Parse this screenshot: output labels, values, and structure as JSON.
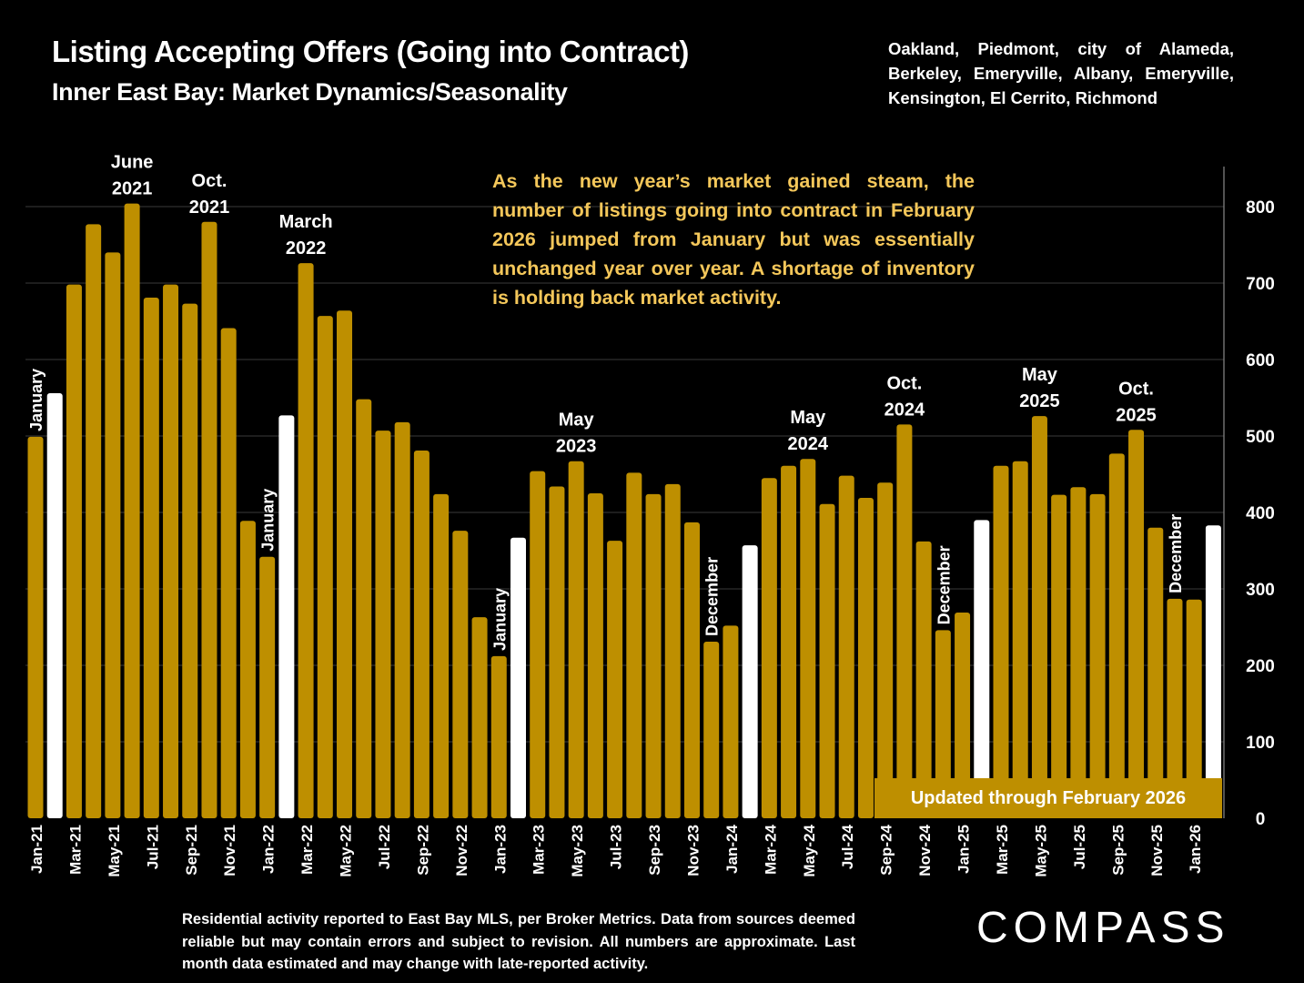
{
  "header": {
    "title": "Listing Accepting Offers (Going into Contract)",
    "subtitle": "Inner East Bay: Market Dynamics/Seasonality",
    "regions": "Oakland, Piedmont, city of Alameda, Berkeley, Emeryville, Albany, Emeryville, Kensington, El Cerrito, Richmond"
  },
  "note": "As the new year’s market gained steam, the number of listings going into contract in February 2026 jumped from January but was essentially unchanged year over year. A shortage of inventory is holding back market activity.",
  "updated_label": "Updated through February 2026",
  "footer": "Residential activity reported to East Bay MLS, per Broker Metrics. Data from sources deemed reliable but may contain errors and subject to revision. All numbers are approximate. Last month data estimated and may change with late-reported activity.",
  "logo": "COMPASS",
  "colors": {
    "bar": "#be8f00",
    "highlight_bar": "#ffffff",
    "note_text": "#f4c75a",
    "background": "#000000",
    "gridline": "#3a3a3a"
  },
  "chart_data": {
    "type": "bar",
    "title": "Listing Accepting Offers (Going into Contract)",
    "subtitle": "Inner East Bay: Market Dynamics/Seasonality",
    "xlabel": "",
    "ylabel": "",
    "ylim": [
      0,
      850
    ],
    "yticks": [
      0,
      100,
      200,
      300,
      400,
      500,
      600,
      700,
      800
    ],
    "y_axis_side": "right",
    "grid": true,
    "categories": [
      "Jan-21",
      "Feb-21",
      "Mar-21",
      "Apr-21",
      "May-21",
      "Jun-21",
      "Jul-21",
      "Aug-21",
      "Sep-21",
      "Oct-21",
      "Nov-21",
      "Dec-21",
      "Jan-22",
      "Feb-22",
      "Mar-22",
      "Apr-22",
      "May-22",
      "Jun-22",
      "Jul-22",
      "Aug-22",
      "Sep-22",
      "Oct-22",
      "Nov-22",
      "Dec-22",
      "Jan-23",
      "Feb-23",
      "Mar-23",
      "Apr-23",
      "May-23",
      "Jun-23",
      "Jul-23",
      "Aug-23",
      "Sep-23",
      "Oct-23",
      "Nov-23",
      "Dec-23",
      "Jan-24",
      "Feb-24",
      "Mar-24",
      "Apr-24",
      "May-24",
      "Jun-24",
      "Jul-24",
      "Aug-24",
      "Sep-24",
      "Oct-24",
      "Nov-24",
      "Dec-24",
      "Jan-25",
      "Feb-25",
      "Mar-25",
      "Apr-25",
      "May-25",
      "Jun-25",
      "Jul-25",
      "Aug-25",
      "Sep-25",
      "Oct-25",
      "Nov-25",
      "Dec-25",
      "Jan-26",
      "Feb-26"
    ],
    "x_tick_labels": [
      "Jan-21",
      "Mar-21",
      "May-21",
      "Jul-21",
      "Sep-21",
      "Nov-21",
      "Jan-22",
      "Mar-22",
      "May-22",
      "Jul-22",
      "Sep-22",
      "Nov-22",
      "Jan-23",
      "Mar-23",
      "May-23",
      "Jul-23",
      "Sep-23",
      "Nov-23",
      "Jan-24",
      "Mar-24",
      "May-24",
      "Jul-24",
      "Sep-24",
      "Nov-24",
      "Jan-25",
      "Mar-25",
      "May-25",
      "Jul-25",
      "Sep-25",
      "Nov-25",
      "Jan-26"
    ],
    "values": [
      499,
      556,
      698,
      777,
      740,
      804,
      681,
      698,
      673,
      780,
      641,
      389,
      342,
      527,
      726,
      657,
      664,
      548,
      507,
      518,
      481,
      424,
      376,
      263,
      212,
      367,
      454,
      434,
      467,
      425,
      363,
      452,
      424,
      437,
      387,
      231,
      252,
      357,
      445,
      461,
      470,
      411,
      448,
      419,
      439,
      515,
      362,
      246,
      269,
      390,
      461,
      467,
      526,
      423,
      433,
      424,
      477,
      508,
      380,
      287,
      286,
      383
    ],
    "highlighted": [
      "Feb-21",
      "Feb-22",
      "Feb-23",
      "Feb-24",
      "Feb-25",
      "Feb-26"
    ],
    "annotations": [
      {
        "target": "Jun-21",
        "lines": [
          "June",
          "2021"
        ],
        "orientation": "horizontal"
      },
      {
        "target": "Oct-21",
        "lines": [
          "Oct.",
          "2021"
        ],
        "orientation": "horizontal"
      },
      {
        "target": "Mar-22",
        "lines": [
          "March",
          "2022"
        ],
        "orientation": "horizontal"
      },
      {
        "target": "May-23",
        "lines": [
          "May",
          "2023"
        ],
        "orientation": "horizontal"
      },
      {
        "target": "May-24",
        "lines": [
          "May",
          "2024"
        ],
        "orientation": "horizontal"
      },
      {
        "target": "Oct-24",
        "lines": [
          "Oct.",
          "2024"
        ],
        "orientation": "horizontal"
      },
      {
        "target": "May-25",
        "lines": [
          "May",
          "2025"
        ],
        "orientation": "horizontal"
      },
      {
        "target": "Oct-25",
        "lines": [
          "Oct.",
          "2025"
        ],
        "orientation": "horizontal"
      },
      {
        "target": "Jan-21",
        "lines": [
          "January"
        ],
        "orientation": "vertical"
      },
      {
        "target": "Jan-22",
        "lines": [
          "January"
        ],
        "orientation": "vertical"
      },
      {
        "target": "Jan-23",
        "lines": [
          "January"
        ],
        "orientation": "vertical"
      },
      {
        "target": "Dec-23",
        "lines": [
          "December"
        ],
        "orientation": "vertical"
      },
      {
        "target": "Dec-24",
        "lines": [
          "December"
        ],
        "orientation": "vertical"
      },
      {
        "target": "Dec-25",
        "lines": [
          "December"
        ],
        "orientation": "vertical"
      }
    ]
  }
}
